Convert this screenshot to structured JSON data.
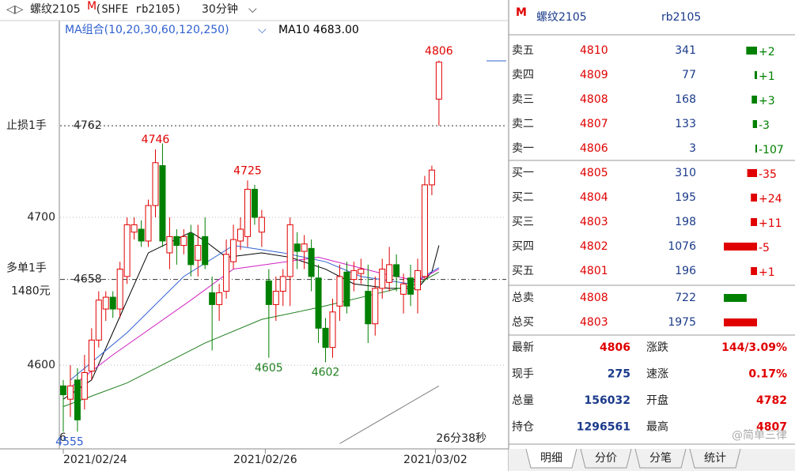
{
  "chart_data": {
    "type": "candlestick",
    "title": "螺纹2105",
    "title_badge": "M",
    "exchange": "(SHFE rb2105)",
    "period": "30分钟",
    "ma_legend": "MA组合(10,20,30,60,120,250)",
    "ma_readout": "MA10 4683.00",
    "ylim": [
      4545,
      4831
    ],
    "yticks": [
      4600,
      4700
    ],
    "grid": true,
    "xticks": [
      {
        "value": 0,
        "label": "2021/02/24"
      },
      {
        "value": 28.5,
        "label": "2021/02/26"
      },
      {
        "value": 52.5,
        "label": "2021/03/02"
      }
    ],
    "up_color": "#e00000",
    "down_color": "#008000",
    "open": [
      4586,
      4577,
      4590,
      4577,
      4596,
      4617,
      4638,
      4646,
      4638,
      4660,
      4690,
      4692,
      4684,
      4708,
      4735,
      4676,
      4687,
      4681,
      4689,
      4671,
      4687,
      4649,
      4641,
      4650,
      4670,
      4684,
      4687,
      4719,
      4690,
      4657,
      4641,
      4650,
      4660,
      4682,
      4677,
      4679,
      4659,
      4625,
      4612,
      4640,
      4663,
      4658,
      4662,
      4650,
      4628,
      4652,
      4656,
      4668,
      4648,
      4659,
      4651,
      4660,
      4722,
      4780
    ],
    "high": [
      4590,
      4600,
      4598,
      4607,
      4625,
      4650,
      4650,
      4650,
      4670,
      4700,
      4700,
      4698,
      4712,
      4746,
      4750,
      4700,
      4692,
      4692,
      4695,
      4695,
      4700,
      4660,
      4655,
      4685,
      4695,
      4700,
      4725,
      4722,
      4705,
      4665,
      4660,
      4665,
      4700,
      4690,
      4688,
      4685,
      4668,
      4632,
      4645,
      4668,
      4670,
      4670,
      4672,
      4668,
      4660,
      4672,
      4680,
      4675,
      4662,
      4668,
      4672,
      4728,
      4735,
      4806
    ],
    "low": [
      4555,
      4565,
      4555,
      4570,
      4590,
      4612,
      4630,
      4632,
      4632,
      4655,
      4685,
      4680,
      4680,
      4700,
      4680,
      4665,
      4668,
      4675,
      4660,
      4660,
      4665,
      4610,
      4630,
      4645,
      4665,
      4678,
      4680,
      4695,
      4680,
      4605,
      4630,
      4640,
      4640,
      4665,
      4665,
      4650,
      4615,
      4602,
      4605,
      4630,
      4635,
      4650,
      4655,
      4615,
      4620,
      4645,
      4650,
      4650,
      4635,
      4640,
      4635,
      4658,
      4715,
      4762
    ],
    "close": [
      4580,
      4586,
      4563,
      4595,
      4617,
      4644,
      4646,
      4638,
      4665,
      4695,
      4695,
      4684,
      4708,
      4737,
      4684,
      4687,
      4681,
      4687,
      4668,
      4681,
      4668,
      4641,
      4649,
      4675,
      4685,
      4692,
      4719,
      4700,
      4700,
      4641,
      4650,
      4660,
      4695,
      4677,
      4682,
      4660,
      4625,
      4612,
      4636,
      4660,
      4640,
      4664,
      4665,
      4628,
      4652,
      4665,
      4668,
      4660,
      4655,
      4648,
      4664,
      4722,
      4732,
      4805
    ],
    "ma_lines": [
      {
        "color": "#000000",
        "x": [
          0,
          4,
          8,
          12,
          18,
          20,
          23,
          28,
          32,
          37,
          41,
          46,
          50,
          52,
          53
        ],
        "values": [
          4577,
          4590,
          4633,
          4676,
          4690,
          4684,
          4673,
          4676,
          4673,
          4665,
          4655,
          4652,
          4652,
          4663,
          4681
        ]
      },
      {
        "color": "#3060d0",
        "x": [
          1,
          9,
          17,
          24,
          31,
          37,
          42,
          49,
          53
        ],
        "values": [
          4590,
          4622,
          4660,
          4681,
          4676,
          4670,
          4660,
          4655,
          4666
        ]
      },
      {
        "color": "#d020c0",
        "x": [
          1,
          7,
          18,
          24,
          36,
          45,
          50,
          53
        ],
        "values": [
          4585,
          4607,
          4644,
          4665,
          4673,
          4662,
          4657,
          4665
        ]
      },
      {
        "color": "#208020",
        "x": [
          0,
          9,
          20,
          28,
          36,
          43,
          50,
          53
        ],
        "values": [
          4572,
          4588,
          4615,
          4631,
          4639,
          4647,
          4655,
          4663
        ]
      },
      {
        "color": "#808080",
        "x": [
          39,
          53
        ],
        "values": [
          4547,
          4586
        ]
      }
    ],
    "stop_line": {
      "value": 4762,
      "tag": "止损1手"
    },
    "order_line": {
      "value": 4658,
      "tag": "多单1手",
      "profit": "1480元"
    },
    "countdown": "26分38秒",
    "corner_digit": "6"
  },
  "quote": {
    "badge": "M",
    "name": "螺纹2105",
    "code": "rb2105",
    "asks": [
      {
        "label": "卖五",
        "price": 4810,
        "volume": 341,
        "change": "+2"
      },
      {
        "label": "卖四",
        "price": 4809,
        "volume": 77,
        "change": "+1"
      },
      {
        "label": "卖三",
        "price": 4808,
        "volume": 168,
        "change": "+3"
      },
      {
        "label": "卖二",
        "price": 4807,
        "volume": 133,
        "change": "-3"
      },
      {
        "label": "卖一",
        "price": 4806,
        "volume": 3,
        "change": "-107"
      }
    ],
    "bids": [
      {
        "label": "买一",
        "price": 4805,
        "volume": 310,
        "change": "-35"
      },
      {
        "label": "买二",
        "price": 4804,
        "volume": 195,
        "change": "+24"
      },
      {
        "label": "买三",
        "price": 4803,
        "volume": 198,
        "change": "+11"
      },
      {
        "label": "买四",
        "price": 4802,
        "volume": 1076,
        "change": "-5"
      },
      {
        "label": "买五",
        "price": 4801,
        "volume": 196,
        "change": "+1"
      }
    ],
    "totals": [
      {
        "label": "总卖",
        "price": 4808,
        "volume": 722
      },
      {
        "label": "总买",
        "price": 4803,
        "volume": 1975
      }
    ],
    "stats": [
      [
        {
          "label": "最新",
          "value": 4806
        },
        {
          "label": "涨跌",
          "value": "144/3.09%"
        }
      ],
      [
        {
          "label": "现手",
          "value": 275
        },
        {
          "label": "速涨",
          "value": "0.17%"
        }
      ],
      [
        {
          "label": "总量",
          "value": 156032
        },
        {
          "label": "开盘",
          "value": 4782
        }
      ],
      [
        {
          "label": "持仓",
          "value": 1296561
        },
        {
          "label": "最高",
          "value": 4807
        }
      ]
    ]
  },
  "tabs": [
    "明细",
    "分价",
    "分笔",
    "统计"
  ],
  "watermark": "@简单三律"
}
